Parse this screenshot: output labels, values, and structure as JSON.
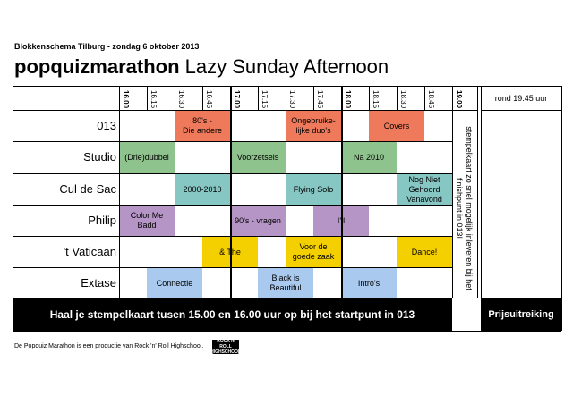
{
  "header": {
    "subtitle": "Blokkenschema Tilburg - zondag 6 oktober 2013",
    "title_bold": "popquizmarathon",
    "title_rest": " Lazy Sunday Afternoon"
  },
  "times": [
    "16.00",
    "16.15",
    "16.30",
    "16.45",
    "17.00",
    "17.15",
    "17.30",
    "17.45",
    "18.00",
    "18.15",
    "18.30",
    "18.45",
    "19.00"
  ],
  "rooms": [
    "013",
    "Studio",
    "Cul de Sac",
    "Philip",
    "'t Vaticaan",
    "Extase"
  ],
  "blocks": [
    {
      "room": "013",
      "label": "80's -\nDie andere",
      "color": "#ef7a5b"
    },
    {
      "room": "013",
      "label": "Ongebruike-\nlijke duo's",
      "color": "#ef7a5b"
    },
    {
      "room": "013",
      "label": "Covers",
      "color": "#ef7a5b"
    },
    {
      "room": "Studio",
      "label": "(Drie)dubbel",
      "color": "#8fc38d"
    },
    {
      "room": "Studio",
      "label": "Voorzetsels",
      "color": "#8fc38d"
    },
    {
      "room": "Studio",
      "label": "Na 2010",
      "color": "#8fc38d"
    },
    {
      "room": "Cul de Sac",
      "label": "2000-2010",
      "color": "#86c6c3"
    },
    {
      "room": "Cul de Sac",
      "label": "Flying Solo",
      "color": "#86c6c3"
    },
    {
      "room": "Cul de Sac",
      "label": "Nog Niet\nGehoord\nVanavond",
      "color": "#86c6c3"
    },
    {
      "room": "Philip",
      "label": "Color Me\nBadd",
      "color": "#b595c6"
    },
    {
      "room": "Philip",
      "label": "90's - vragen",
      "color": "#b595c6"
    },
    {
      "room": "Philip",
      "label": "I'll",
      "color": "#b595c6"
    },
    {
      "room": "'t Vaticaan",
      "label": "& The",
      "color": "#f5d000"
    },
    {
      "room": "'t Vaticaan",
      "label": "Voor de\ngoede zaak",
      "color": "#f5d000"
    },
    {
      "room": "'t Vaticaan",
      "label": "Dance!",
      "color": "#f5d000"
    },
    {
      "room": "Extase",
      "label": "Connectie",
      "color": "#a9c9ee"
    },
    {
      "room": "Extase",
      "label": "Black is\nBeautiful",
      "color": "#a9c9ee"
    },
    {
      "room": "Extase",
      "label": "Intro's",
      "color": "#a9c9ee"
    }
  ],
  "side": {
    "rond": "rond 19.45 uur",
    "note": "stempelkaart zo snel mogelijk inleveren bij het finishpunt in 013!",
    "prijs": "Prijsuitreiking"
  },
  "footer": {
    "bar": "Haal je stempelkaart tusen 15.00 en 16.00 uur op bij het startpunt in 013",
    "credit": "De Popquiz Marathon is een productie van Rock 'n' Roll Highschool.",
    "logo": "ROCK'N ROLL HIGHSCHOOL"
  }
}
